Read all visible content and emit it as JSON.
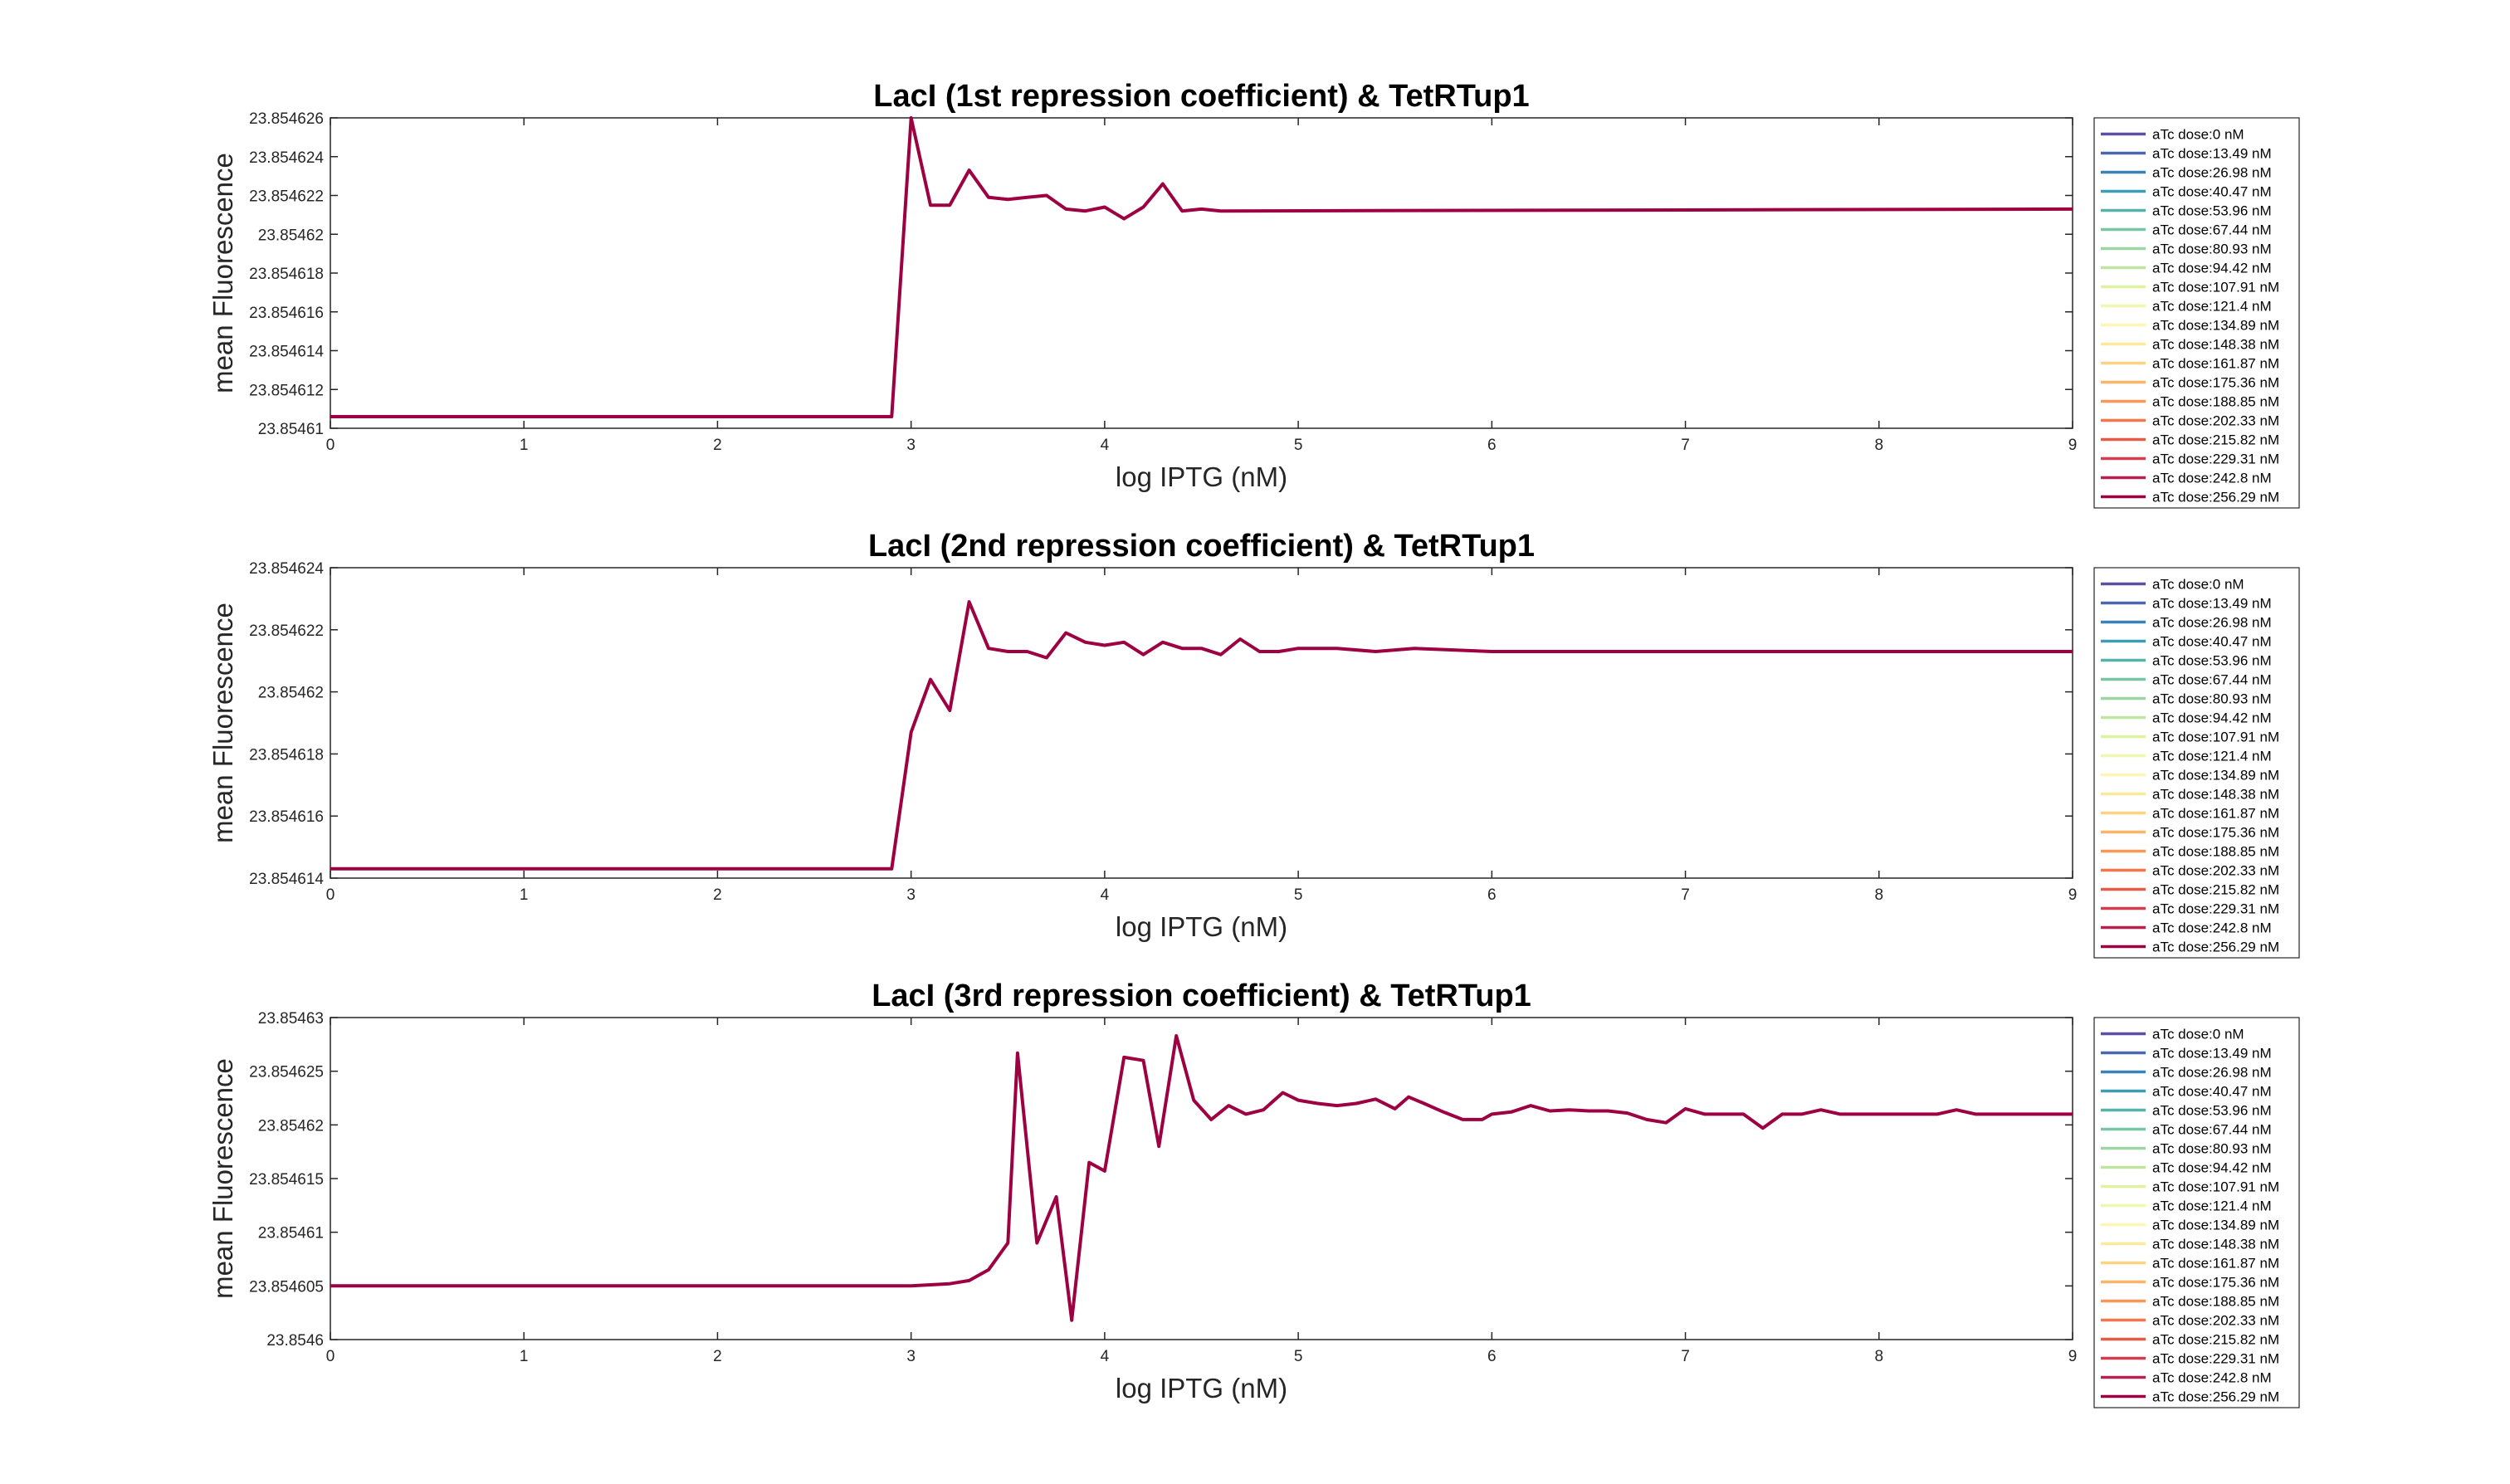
{
  "chart_data": [
    {
      "type": "line",
      "title": "LacI (1st repression coefficient) & TetRTup1",
      "xlabel": "log IPTG (nM)",
      "ylabel": "mean Fluorescence",
      "xlim": [
        0,
        9
      ],
      "ylim": [
        23.85461,
        23.854626
      ],
      "xticks": [
        "0",
        "1",
        "2",
        "3",
        "4",
        "5",
        "6",
        "7",
        "8",
        "9"
      ],
      "yticks": [
        {
          "value": 23.85461,
          "label": "23.85461"
        },
        {
          "value": 23.854612,
          "label": "23.854612"
        },
        {
          "value": 23.854614,
          "label": "23.854614"
        },
        {
          "value": 23.854616,
          "label": "23.854616"
        },
        {
          "value": 23.854618,
          "label": "23.854618"
        },
        {
          "value": 23.85462,
          "label": "23.85462"
        },
        {
          "value": 23.854622,
          "label": "23.854622"
        },
        {
          "value": 23.854624,
          "label": "23.854624"
        },
        {
          "value": 23.854626,
          "label": "23.854626"
        }
      ],
      "grid": false,
      "legend_position": "right",
      "x": [
        0,
        2.9,
        3.0,
        3.1,
        3.2,
        3.3,
        3.4,
        3.5,
        3.6,
        3.7,
        3.8,
        3.9,
        4.0,
        4.1,
        4.2,
        4.3,
        4.4,
        4.5,
        4.6,
        9.0
      ],
      "y": [
        23.8546106,
        23.8546106,
        23.854626,
        23.8546215,
        23.8546215,
        23.8546233,
        23.8546219,
        23.8546218,
        23.8546219,
        23.854622,
        23.8546213,
        23.8546212,
        23.8546214,
        23.8546208,
        23.8546214,
        23.8546226,
        23.8546212,
        23.8546213,
        23.8546212,
        23.8546213
      ]
    },
    {
      "type": "line",
      "title": "LacI (2nd repression coefficient) & TetRTup1",
      "xlabel": "log IPTG (nM)",
      "ylabel": "mean Fluorescence",
      "xlim": [
        0,
        9
      ],
      "ylim": [
        23.854614,
        23.854624
      ],
      "xticks": [
        "0",
        "1",
        "2",
        "3",
        "4",
        "5",
        "6",
        "7",
        "8",
        "9"
      ],
      "yticks": [
        {
          "value": 23.854614,
          "label": "23.854614"
        },
        {
          "value": 23.854616,
          "label": "23.854616"
        },
        {
          "value": 23.854618,
          "label": "23.854618"
        },
        {
          "value": 23.85462,
          "label": "23.85462"
        },
        {
          "value": 23.854622,
          "label": "23.854622"
        },
        {
          "value": 23.854624,
          "label": "23.854624"
        }
      ],
      "grid": false,
      "legend_position": "right",
      "x": [
        0,
        2.9,
        3.0,
        3.1,
        3.2,
        3.3,
        3.4,
        3.5,
        3.6,
        3.7,
        3.8,
        3.9,
        4.0,
        4.1,
        4.2,
        4.3,
        4.4,
        4.5,
        4.6,
        4.7,
        4.8,
        4.9,
        5.0,
        5.2,
        5.4,
        5.6,
        6.0,
        9.0
      ],
      "y": [
        23.8546143,
        23.8546143,
        23.8546187,
        23.8546204,
        23.8546194,
        23.8546229,
        23.8546214,
        23.8546213,
        23.8546213,
        23.8546211,
        23.8546219,
        23.8546216,
        23.8546215,
        23.8546216,
        23.8546212,
        23.8546216,
        23.8546214,
        23.8546214,
        23.8546212,
        23.8546217,
        23.8546213,
        23.8546213,
        23.8546214,
        23.8546214,
        23.8546213,
        23.8546214,
        23.8546213,
        23.8546213
      ]
    },
    {
      "type": "line",
      "title": "LacI (3rd repression coefficient) & TetRTup1",
      "xlabel": "log IPTG (nM)",
      "ylabel": "mean Fluorescence",
      "xlim": [
        0,
        9
      ],
      "ylim": [
        23.8546,
        23.85463
      ],
      "xticks": [
        "0",
        "1",
        "2",
        "3",
        "4",
        "5",
        "6",
        "7",
        "8",
        "9"
      ],
      "yticks": [
        {
          "value": 23.8546,
          "label": "23.8546"
        },
        {
          "value": 23.854605,
          "label": "23.854605"
        },
        {
          "value": 23.85461,
          "label": "23.85461"
        },
        {
          "value": 23.854615,
          "label": "23.854615"
        },
        {
          "value": 23.85462,
          "label": "23.85462"
        },
        {
          "value": 23.854625,
          "label": "23.854625"
        },
        {
          "value": 23.85463,
          "label": "23.85463"
        }
      ],
      "grid": false,
      "legend_position": "right",
      "x": [
        0,
        3.0,
        3.1,
        3.2,
        3.3,
        3.4,
        3.5,
        3.55,
        3.65,
        3.75,
        3.83,
        3.92,
        4.0,
        4.1,
        4.2,
        4.28,
        4.37,
        4.46,
        4.55,
        4.64,
        4.73,
        4.82,
        4.92,
        5.0,
        5.1,
        5.2,
        5.3,
        5.4,
        5.5,
        5.57,
        5.65,
        5.75,
        5.85,
        5.95,
        6.0,
        6.1,
        6.2,
        6.3,
        6.4,
        6.5,
        6.6,
        6.7,
        6.8,
        6.9,
        7.0,
        7.1,
        7.2,
        7.3,
        7.4,
        7.5,
        7.6,
        7.7,
        7.8,
        7.9,
        8.0,
        8.1,
        8.2,
        8.3,
        8.4,
        8.5,
        9.0
      ],
      "y": [
        23.854605,
        23.854605,
        23.8546051,
        23.8546052,
        23.8546055,
        23.8546065,
        23.854609,
        23.8546267,
        23.854609,
        23.8546133,
        23.8546018,
        23.8546165,
        23.8546157,
        23.8546263,
        23.854626,
        23.854618,
        23.8546283,
        23.8546223,
        23.8546205,
        23.8546218,
        23.854621,
        23.8546214,
        23.854623,
        23.8546223,
        23.854622,
        23.8546218,
        23.854622,
        23.8546224,
        23.8546215,
        23.8546226,
        23.854622,
        23.8546212,
        23.8546205,
        23.8546205,
        23.854621,
        23.8546212,
        23.8546218,
        23.8546213,
        23.8546214,
        23.8546213,
        23.8546213,
        23.8546211,
        23.8546205,
        23.8546202,
        23.8546215,
        23.854621,
        23.854621,
        23.854621,
        23.8546197,
        23.854621,
        23.854621,
        23.8546214,
        23.854621,
        23.854621,
        23.854621,
        23.854621,
        23.854621,
        23.854621,
        23.8546214,
        23.854621,
        23.854621
      ]
    }
  ],
  "legend": {
    "entries": [
      {
        "label": "aTc dose:0 nM",
        "color": "#5e4fa2"
      },
      {
        "label": "aTc dose:13.49 nM",
        "color": "#4a68ae"
      },
      {
        "label": "aTc dose:26.98 nM",
        "color": "#3a83b8"
      },
      {
        "label": "aTc dose:40.47 nM",
        "color": "#3d9eb3"
      },
      {
        "label": "aTc dose:53.96 nM",
        "color": "#55b3a7"
      },
      {
        "label": "aTc dose:67.44 nM",
        "color": "#78c7a4"
      },
      {
        "label": "aTc dose:80.93 nM",
        "color": "#9dd5a4"
      },
      {
        "label": "aTc dose:94.42 nM",
        "color": "#bfe5a0"
      },
      {
        "label": "aTc dose:107.91 nM",
        "color": "#def2a0"
      },
      {
        "label": "aTc dose:121.4 nM",
        "color": "#f0f8b0"
      },
      {
        "label": "aTc dose:134.89 nM",
        "color": "#fdf6b4"
      },
      {
        "label": "aTc dose:148.38 nM",
        "color": "#fee99a"
      },
      {
        "label": "aTc dose:161.87 nM",
        "color": "#fed280"
      },
      {
        "label": "aTc dose:175.36 nM",
        "color": "#fdb668"
      },
      {
        "label": "aTc dose:188.85 nM",
        "color": "#fa9656"
      },
      {
        "label": "aTc dose:202.33 nM",
        "color": "#f4764a"
      },
      {
        "label": "aTc dose:215.82 nM",
        "color": "#e65a46"
      },
      {
        "label": "aTc dose:229.31 nM",
        "color": "#d43d4f"
      },
      {
        "label": "aTc dose:242.8 nM",
        "color": "#b8204f"
      },
      {
        "label": "aTc dose:256.29 nM",
        "color": "#9e0142"
      }
    ]
  },
  "line_color": "#9e0142"
}
